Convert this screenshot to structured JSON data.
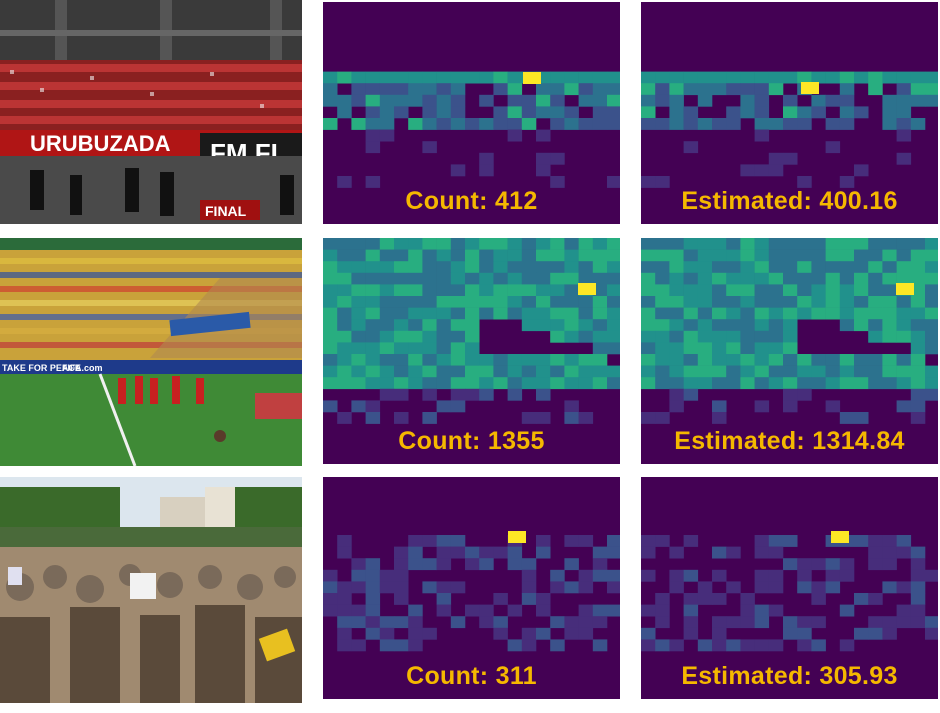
{
  "rows": [
    {
      "photo": {
        "name": "photo-stadium-flamengo-fans",
        "banner_text": "URUBUZADA",
        "banner_text_2": "FM FL",
        "sign_text": "FINAL"
      },
      "count_label": "Count: 412",
      "estimated_label": "Estimated: 400.16"
    },
    {
      "photo": {
        "name": "photo-stadium-world-cup",
        "banner_text": "TAKE FOR PEACE",
        "banner_text_2": "FIFA.com"
      },
      "count_label": "Count: 1355",
      "estimated_label": "Estimated: 1314.84"
    },
    {
      "photo": {
        "name": "photo-street-protest-crowd"
      },
      "count_label": "Count: 311",
      "estimated_label": "Estimated: 305.93"
    }
  ],
  "colors": {
    "map_background": "#440154",
    "caption": "#f5b800",
    "viridis": [
      "#440154",
      "#472d7b",
      "#3b528b",
      "#2c728e",
      "#21918c",
      "#28ae80",
      "#5ec962",
      "#addc30",
      "#fde725"
    ]
  }
}
